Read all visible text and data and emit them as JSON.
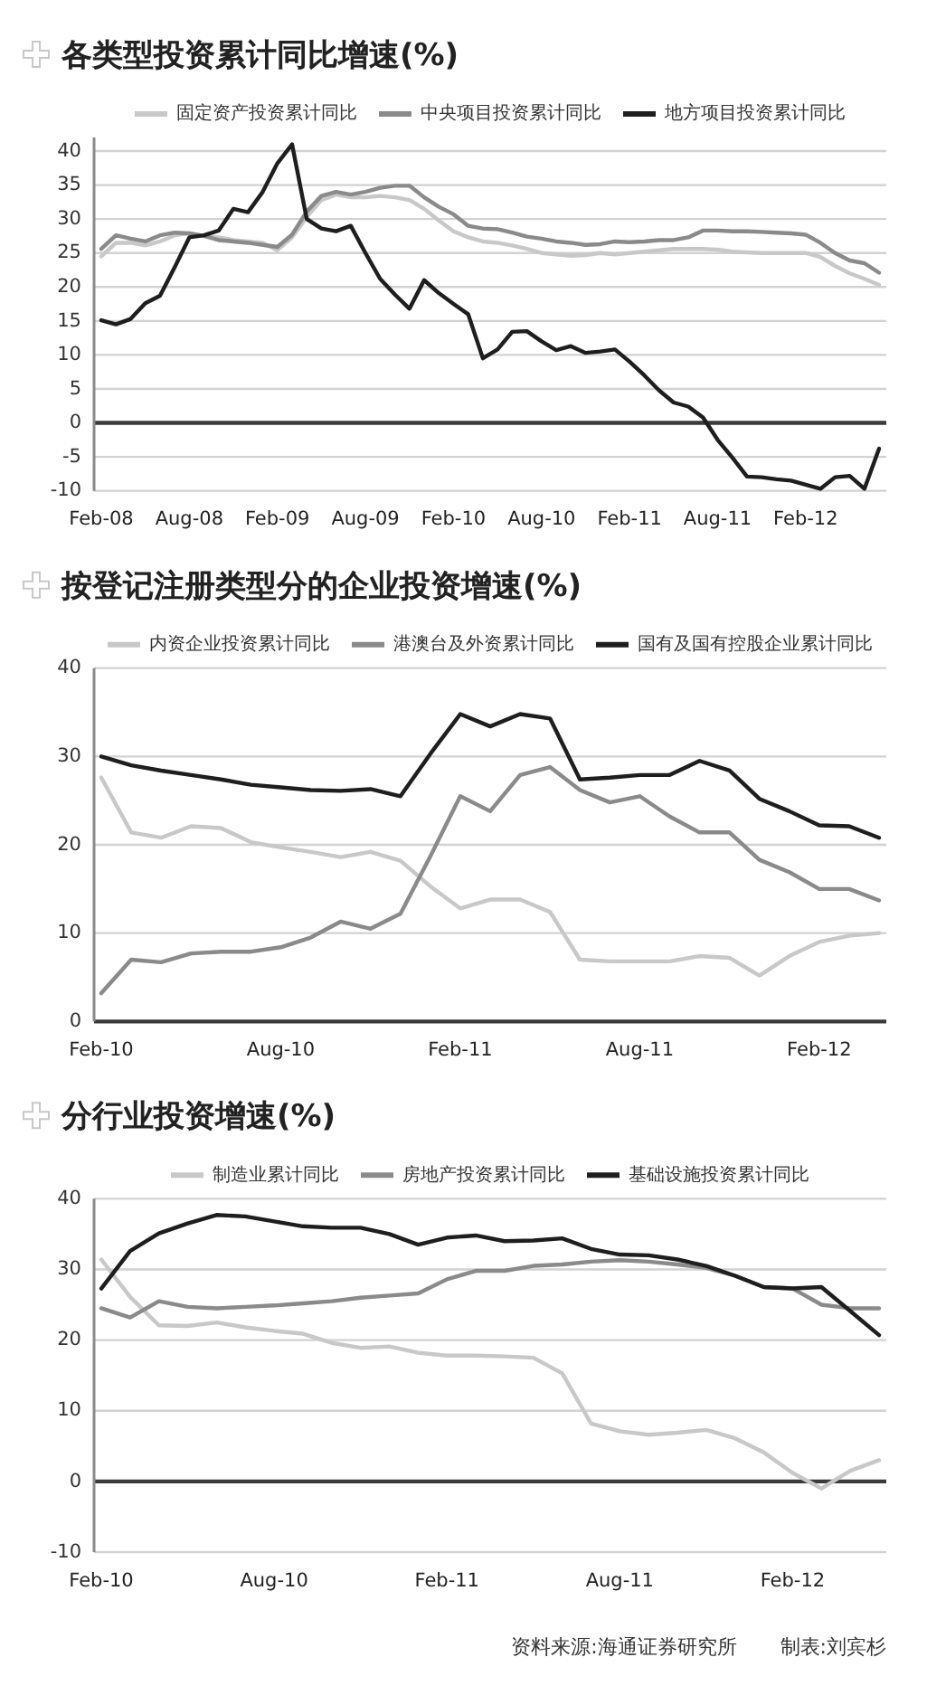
{
  "chart_data": [
    {
      "type": "line",
      "title": "各类型投资累计同比增速(%)",
      "categories": [
        "Feb-08",
        null,
        null,
        null,
        null,
        null,
        "Aug-08",
        null,
        null,
        null,
        null,
        null,
        "Feb-09",
        null,
        null,
        null,
        null,
        null,
        "Aug-09",
        null,
        null,
        null,
        null,
        null,
        "Feb-10",
        null,
        null,
        null,
        null,
        null,
        "Aug-10",
        null,
        null,
        null,
        null,
        null,
        "Feb-11",
        null,
        null,
        null,
        null,
        null,
        "Aug-11",
        null,
        null,
        null,
        null,
        null,
        "Feb-12",
        null,
        null,
        null,
        null,
        null
      ],
      "series": [
        {
          "name": "固定资产投资累计同比",
          "color": "#c8c8c8",
          "values": [
            24.5,
            26.5,
            26.5,
            26.1,
            26.7,
            27.6,
            27.9,
            27.5,
            27.3,
            26.9,
            26.7,
            26.5,
            25.4,
            27.3,
            30.3,
            32.8,
            33.6,
            33.2,
            33.2,
            33.4,
            33.2,
            32.8,
            31.5,
            29.8,
            28.2,
            27.3,
            26.7,
            26.5,
            26.1,
            25.6,
            25.0,
            24.8,
            24.6,
            24.7,
            25.0,
            24.8,
            25.0,
            25.2,
            25.4,
            25.6,
            25.6,
            25.6,
            25.5,
            25.2,
            25.1,
            25.0,
            25.0,
            25.0,
            25.0,
            24.4,
            23.1,
            22.0,
            21.2,
            20.3
          ]
        },
        {
          "name": "中央项目投资累计同比",
          "color": "#8a8a8a",
          "values": [
            25.6,
            27.6,
            27.1,
            26.7,
            27.6,
            28.0,
            27.9,
            27.5,
            26.9,
            26.7,
            26.5,
            26.2,
            25.9,
            27.7,
            31.1,
            33.4,
            34.0,
            33.6,
            34.0,
            34.6,
            34.9,
            34.9,
            33.2,
            31.8,
            30.7,
            29.0,
            28.6,
            28.5,
            28.0,
            27.4,
            27.1,
            26.7,
            26.5,
            26.2,
            26.3,
            26.7,
            26.6,
            26.7,
            26.9,
            26.9,
            27.3,
            28.3,
            28.3,
            28.2,
            28.2,
            28.1,
            28.0,
            27.9,
            27.7,
            26.5,
            25.0,
            23.9,
            23.5,
            22.1
          ]
        },
        {
          "name": "地方项目投资累计同比",
          "color": "#1e1e1e",
          "values": [
            15.1,
            14.5,
            15.3,
            17.6,
            18.7,
            22.9,
            27.3,
            27.6,
            28.3,
            31.5,
            31.0,
            34.0,
            38.2,
            41.0,
            30.0,
            28.6,
            28.2,
            29.0,
            25.0,
            21.2,
            18.9,
            16.8,
            21.0,
            19.1,
            17.5,
            16.0,
            9.5,
            10.8,
            13.4,
            13.5,
            12.0,
            10.7,
            11.3,
            10.3,
            10.5,
            10.8,
            9.0,
            7.0,
            4.8,
            3.0,
            2.4,
            0.8,
            -2.5,
            -5.1,
            -7.9,
            -8.0,
            -8.3,
            -8.5,
            -9.1,
            -9.7,
            -8.0,
            -7.8,
            -9.7,
            -3.8
          ]
        }
      ],
      "ylim": [
        -10,
        42
      ],
      "yticks": [
        -10,
        -5,
        0,
        5,
        10,
        15,
        20,
        25,
        30,
        35,
        40
      ],
      "grid": "y",
      "legend": "top"
    },
    {
      "type": "line",
      "title": "按登记注册类型分的企业投资增速(%)",
      "categories": [
        "Feb-10",
        null,
        null,
        null,
        null,
        null,
        "Aug-10",
        null,
        null,
        null,
        null,
        null,
        "Feb-11",
        null,
        null,
        null,
        null,
        null,
        "Aug-11",
        null,
        null,
        null,
        null,
        null,
        "Feb-12",
        null,
        null
      ],
      "series": [
        {
          "name": "内资企业投资累计同比",
          "color": "#c8c8c8",
          "values": [
            27.6,
            21.4,
            20.8,
            22.1,
            21.9,
            20.3,
            19.7,
            19.2,
            18.6,
            19.2,
            18.2,
            15.3,
            12.8,
            13.8,
            13.8,
            12.4,
            7.0,
            6.8,
            6.8,
            6.8,
            7.4,
            7.2,
            5.2,
            7.4,
            9.0,
            9.7,
            10.0
          ]
        },
        {
          "name": "港澳台及外资累计同比",
          "color": "#8a8a8a",
          "values": [
            3.2,
            7.0,
            6.7,
            7.7,
            7.9,
            7.9,
            8.4,
            9.5,
            11.3,
            10.5,
            12.2,
            18.7,
            25.5,
            23.8,
            27.9,
            28.8,
            26.2,
            24.8,
            25.5,
            23.2,
            21.4,
            21.4,
            18.3,
            16.9,
            15.0,
            15.0,
            13.7
          ]
        },
        {
          "name": "国有及国有控股企业累计同比",
          "color": "#1e1e1e",
          "values": [
            30.0,
            29.0,
            28.4,
            27.9,
            27.4,
            26.8,
            26.5,
            26.2,
            26.1,
            26.3,
            25.5,
            30.3,
            34.8,
            33.4,
            34.8,
            34.3,
            27.4,
            27.6,
            27.9,
            27.9,
            29.5,
            28.4,
            25.2,
            23.8,
            22.2,
            22.1,
            20.8
          ]
        }
      ],
      "ylim": [
        0,
        40
      ],
      "yticks": [
        0,
        10,
        20,
        30,
        40
      ],
      "grid": "y",
      "legend": "top"
    },
    {
      "type": "line",
      "title": "分行业投资增速(%)",
      "categories": [
        "Feb-10",
        null,
        null,
        null,
        null,
        null,
        "Aug-10",
        null,
        null,
        null,
        null,
        null,
        "Feb-11",
        null,
        null,
        null,
        null,
        null,
        "Aug-11",
        null,
        null,
        null,
        null,
        null,
        "Feb-12",
        null,
        null,
        null
      ],
      "series": [
        {
          "name": "制造业累计同比",
          "color": "#c8c8c8",
          "values": [
            31.4,
            26.1,
            22.1,
            22.0,
            22.5,
            21.8,
            21.3,
            20.9,
            19.6,
            18.9,
            19.1,
            18.2,
            17.8,
            17.8,
            17.7,
            17.5,
            15.3,
            8.2,
            7.1,
            6.6,
            6.9,
            7.3,
            6.1,
            4.1,
            1.2,
            -1.0,
            1.5,
            3.0
          ]
        },
        {
          "name": "房地产投资累计同比",
          "color": "#8a8a8a",
          "values": [
            24.5,
            23.2,
            25.5,
            24.7,
            24.5,
            24.7,
            24.9,
            25.2,
            25.5,
            26.0,
            26.3,
            26.6,
            28.6,
            29.8,
            29.8,
            30.5,
            30.7,
            31.1,
            31.3,
            31.1,
            30.7,
            30.2,
            29.1,
            27.5,
            27.3,
            25.0,
            24.5,
            24.5
          ]
        },
        {
          "name": "基础设施投资累计同比",
          "color": "#1e1e1e",
          "values": [
            27.3,
            32.6,
            35.1,
            36.5,
            37.7,
            37.5,
            36.8,
            36.1,
            35.9,
            35.9,
            35.0,
            33.5,
            34.5,
            34.8,
            34.0,
            34.1,
            34.4,
            32.9,
            32.1,
            32.0,
            31.4,
            30.5,
            29.1,
            27.5,
            27.3,
            27.5,
            24.1,
            20.7
          ]
        }
      ],
      "ylim": [
        -10,
        40
      ],
      "yticks": [
        -10,
        0,
        10,
        20,
        30,
        40
      ],
      "grid": "y",
      "legend": "top",
      "annotations": [
        "资料来源:海通证券研究所",
        "制表:刘宾杉"
      ]
    }
  ]
}
